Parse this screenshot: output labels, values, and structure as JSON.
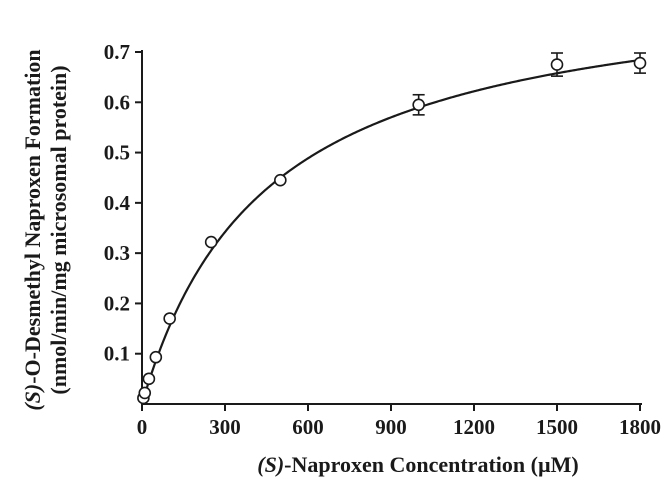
{
  "chart_data": {
    "type": "scatter",
    "xlabel": {
      "italic_part": "(S)",
      "rest": "-Naproxen Concentration (µM)"
    },
    "ylabel": {
      "line1_italic": "(S)",
      "line1_rest": "-O-Desmethyl Naproxen Formation",
      "line2": "(nmol/min/mg microsomal protein)"
    },
    "xlim": [
      0,
      1800
    ],
    "ylim": [
      0,
      0.7
    ],
    "xticks": [
      0,
      300,
      600,
      900,
      1200,
      1500,
      1800
    ],
    "yticks": [
      0.1,
      0.2,
      0.3,
      0.4,
      0.5,
      0.6,
      0.7
    ],
    "xtick_labels": [
      "0",
      "300",
      "600",
      "900",
      "1200",
      "1500",
      "1800"
    ],
    "ytick_labels": [
      "0.1",
      "0.2",
      "0.3",
      "0.4",
      "0.5",
      "0.6",
      "0.7"
    ],
    "grid": false,
    "marker": "open-circle",
    "points": [
      {
        "x": 5,
        "y": 0.012,
        "err": 0.0
      },
      {
        "x": 10,
        "y": 0.022,
        "err": 0.0
      },
      {
        "x": 25,
        "y": 0.05,
        "err": 0.0
      },
      {
        "x": 50,
        "y": 0.093,
        "err": 0.0
      },
      {
        "x": 100,
        "y": 0.17,
        "err": 0.0
      },
      {
        "x": 250,
        "y": 0.322,
        "err": 0.0
      },
      {
        "x": 500,
        "y": 0.445,
        "err": 0.0
      },
      {
        "x": 1000,
        "y": 0.595,
        "err": 0.02
      },
      {
        "x": 1500,
        "y": 0.675,
        "err": 0.023
      },
      {
        "x": 1800,
        "y": 0.678,
        "err": 0.02
      }
    ],
    "fit": {
      "model": "michaelis-menten",
      "vmax": 0.855,
      "km": 450
    }
  }
}
